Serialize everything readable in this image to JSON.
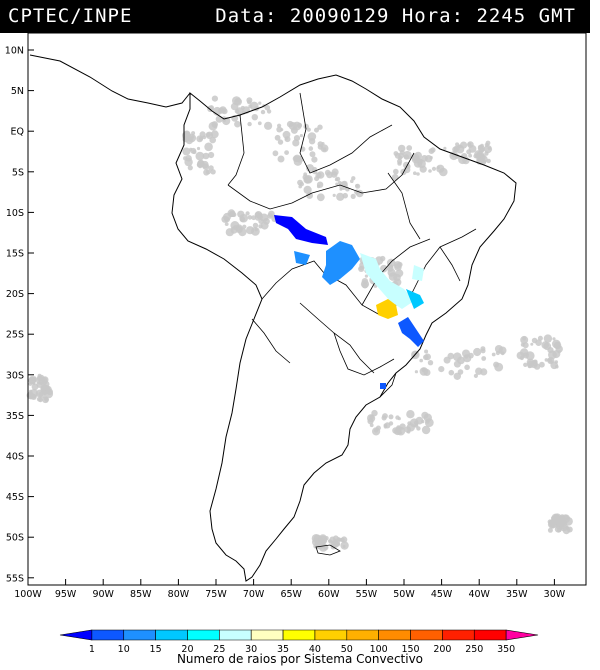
{
  "header": {
    "left": "CPTEC/INPE",
    "right": "Data: 20090129 Hora: 2245 GMT"
  },
  "axes": {
    "lat_labels": [
      "10N",
      "5N",
      "EQ",
      "5S",
      "10S",
      "15S",
      "20S",
      "25S",
      "30S",
      "35S",
      "40S",
      "45S",
      "50S",
      "55S"
    ],
    "lon_labels": [
      "100W",
      "95W",
      "90W",
      "85W",
      "80W",
      "75W",
      "70W",
      "65W",
      "60W",
      "55W",
      "50W",
      "45W",
      "40W",
      "35W",
      "30W"
    ]
  },
  "legend": {
    "labels": [
      "1",
      "10",
      "15",
      "20",
      "25",
      "30",
      "35",
      "40",
      "50",
      "100",
      "150",
      "200",
      "250",
      "350"
    ],
    "colors": [
      "#0000ff",
      "#0d58ff",
      "#1e90ff",
      "#00c8ff",
      "#00ffff",
      "#c8ffff",
      "#ffffc0",
      "#ffff00",
      "#ffd000",
      "#ffb000",
      "#ff8c00",
      "#ff6000",
      "#ff2000",
      "#ff0000",
      "#ff00a0"
    ],
    "caption": "Numero de raios por Sistema Convectivo"
  },
  "map_colors": {
    "cloud": "#c8c8c8",
    "outline": "#000000"
  }
}
